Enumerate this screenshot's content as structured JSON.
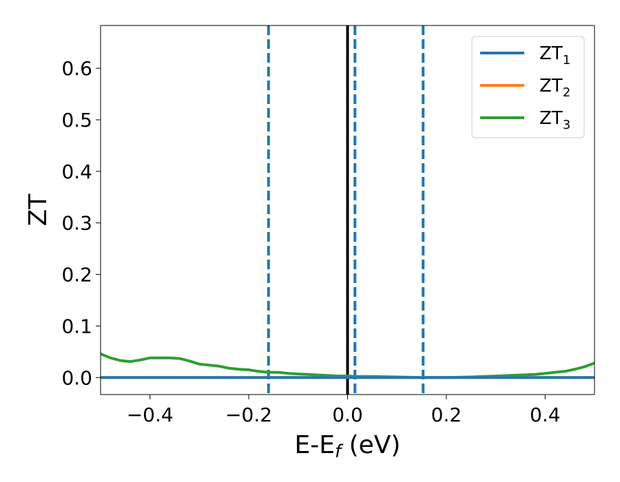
{
  "chart_data": {
    "type": "line",
    "xlabel": {
      "main": "E-E",
      "sub": "f",
      "unit": " (eV)"
    },
    "ylabel": "ZT",
    "xlim": [
      -0.5,
      0.5
    ],
    "ylim": [
      -0.033,
      0.683
    ],
    "x_ticks": [
      -0.4,
      -0.2,
      0.0,
      0.2,
      0.4
    ],
    "x_tick_labels": [
      "−0.4",
      "−0.2",
      "0.0",
      "0.2",
      "0.4"
    ],
    "y_ticks": [
      0.0,
      0.1,
      0.2,
      0.3,
      0.4,
      0.5,
      0.6
    ],
    "y_tick_labels": [
      "0.0",
      "0.1",
      "0.2",
      "0.3",
      "0.4",
      "0.5",
      "0.6"
    ],
    "grid": false,
    "legend_position": "top-right",
    "series": [
      {
        "name": "ZT",
        "name_sub": "1",
        "color": "#1f77b4",
        "x": [
          -0.5,
          0.5
        ],
        "y": [
          0.0,
          0.0
        ]
      },
      {
        "name": "ZT",
        "name_sub": "2",
        "color": "#ff7f0e",
        "x": [
          -0.5,
          0.5
        ],
        "y": [
          0.0,
          0.0
        ]
      },
      {
        "name": "ZT",
        "name_sub": "3",
        "color": "#2ca02c",
        "x": [
          -0.5,
          -0.48,
          -0.46,
          -0.44,
          -0.42,
          -0.4,
          -0.38,
          -0.36,
          -0.34,
          -0.32,
          -0.3,
          -0.28,
          -0.26,
          -0.24,
          -0.22,
          -0.2,
          -0.18,
          -0.16,
          -0.14,
          -0.12,
          -0.1,
          -0.08,
          -0.06,
          -0.04,
          -0.02,
          0.0,
          0.02,
          0.05,
          0.1,
          0.15,
          0.2,
          0.25,
          0.3,
          0.35,
          0.38,
          0.4,
          0.42,
          0.44,
          0.46,
          0.48,
          0.5
        ],
        "y": [
          0.046,
          0.038,
          0.033,
          0.031,
          0.034,
          0.038,
          0.038,
          0.038,
          0.037,
          0.032,
          0.026,
          0.024,
          0.022,
          0.018,
          0.016,
          0.015,
          0.012,
          0.01,
          0.01,
          0.008,
          0.007,
          0.006,
          0.005,
          0.004,
          0.003,
          0.003,
          0.002,
          0.002,
          0.001,
          0.0,
          0.0,
          0.001,
          0.003,
          0.005,
          0.006,
          0.008,
          0.01,
          0.012,
          0.016,
          0.021,
          0.028
        ]
      }
    ],
    "vlines": [
      {
        "x": 0.0,
        "color": "#000000",
        "style": "solid"
      },
      {
        "x": -0.16,
        "color": "#1f77b4",
        "style": "dashed"
      },
      {
        "x": 0.015,
        "color": "#1f77b4",
        "style": "dashed"
      },
      {
        "x": 0.153,
        "color": "#1f77b4",
        "style": "dashed"
      }
    ]
  }
}
